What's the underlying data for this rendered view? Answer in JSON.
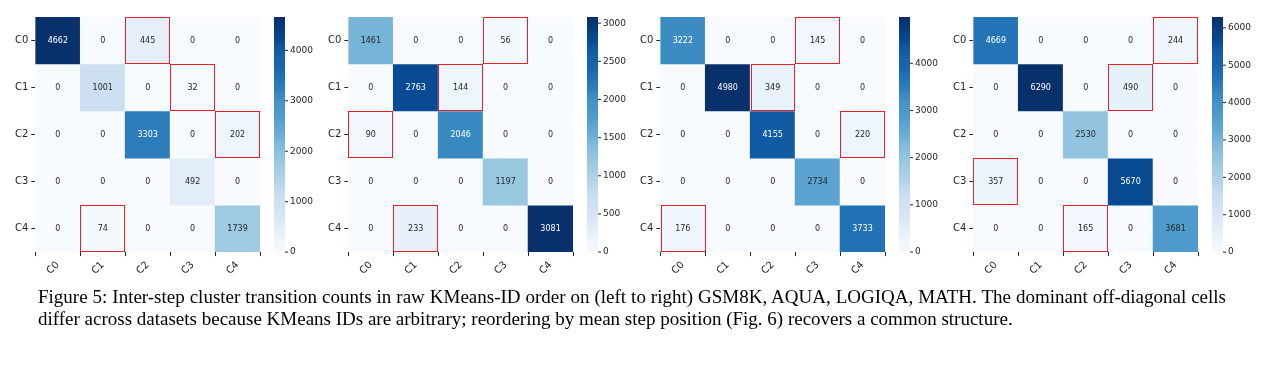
{
  "chart_data": [
    {
      "type": "heatmap",
      "categories": [
        "C0",
        "C1",
        "C2",
        "C3",
        "C4"
      ],
      "y_categories": [
        "C0",
        "C1",
        "C2",
        "C3",
        "C4"
      ],
      "cells": [
        [
          4662,
          0,
          445,
          0,
          0
        ],
        [
          0,
          1001,
          0,
          32,
          0
        ],
        [
          0,
          0,
          3303,
          0,
          202
        ],
        [
          0,
          0,
          0,
          492,
          0
        ],
        [
          0,
          74,
          0,
          0,
          1739
        ]
      ],
      "clim": [
        0,
        4662
      ],
      "cticks": [
        0,
        1000,
        2000,
        3000,
        4000
      ],
      "data_labels": true,
      "annotations": [
        "Figure 5: Inter-step cluster transition counts in raw KMeans-ID order on (left to right) GSM8K, AQUA, LOGIQA, MATH. The dominant off-diagonal cells differ across datasets because KMeans IDs are arbitrary; reordering by mean step position (Fig. 6) recovers a common structure."
      ]
    },
    {
      "type": "heatmap",
      "categories": [
        "C0",
        "C1",
        "C2",
        "C3",
        "C4"
      ],
      "y_categories": [
        "C0",
        "C1",
        "C2",
        "C3",
        "C4"
      ],
      "cells": [
        [
          1461,
          0,
          0,
          56,
          0
        ],
        [
          0,
          2763,
          144,
          0,
          0
        ],
        [
          90,
          0,
          2046,
          0,
          0
        ],
        [
          0,
          0,
          0,
          1197,
          0
        ],
        [
          0,
          233,
          0,
          0,
          3081
        ]
      ],
      "clim": [
        0,
        3081
      ],
      "cticks": [
        0,
        500,
        1000,
        1500,
        2000,
        2500,
        3000
      ],
      "data_labels": true
    },
    {
      "type": "heatmap",
      "categories": [
        "C0",
        "C1",
        "C2",
        "C3",
        "C4"
      ],
      "y_categories": [
        "C0",
        "C1",
        "C2",
        "C3",
        "C4"
      ],
      "cells": [
        [
          3222,
          0,
          0,
          145,
          0
        ],
        [
          0,
          4980,
          349,
          0,
          0
        ],
        [
          0,
          0,
          4155,
          0,
          220
        ],
        [
          0,
          0,
          0,
          2734,
          0
        ],
        [
          176,
          0,
          0,
          0,
          3733
        ]
      ],
      "clim": [
        0,
        4980
      ],
      "cticks": [
        0,
        1000,
        2000,
        3000,
        4000
      ],
      "data_labels": true
    },
    {
      "type": "heatmap",
      "categories": [
        "C0",
        "C1",
        "C2",
        "C3",
        "C4"
      ],
      "y_categories": [
        "C0",
        "C1",
        "C2",
        "C3",
        "C4"
      ],
      "cells": [
        [
          4669,
          0,
          0,
          0,
          244
        ],
        [
          0,
          6290,
          0,
          490,
          0
        ],
        [
          0,
          0,
          2530,
          0,
          0
        ],
        [
          357,
          0,
          0,
          5670,
          0
        ],
        [
          0,
          0,
          165,
          0,
          3681
        ]
      ],
      "clim": [
        0,
        6290
      ],
      "cticks": [
        0,
        1000,
        2000,
        3000,
        4000,
        5000,
        6000
      ],
      "data_labels": true
    }
  ]
}
